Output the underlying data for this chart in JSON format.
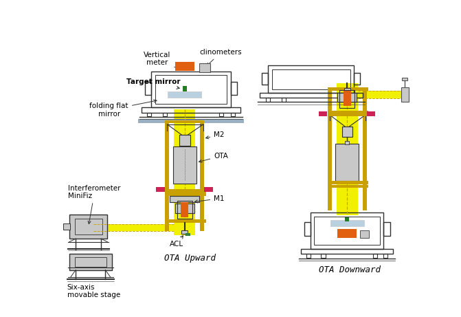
{
  "bg_color": "#ffffff",
  "yellow": "#f0f000",
  "gold": "#c8a000",
  "orange": "#e06010",
  "light_gray": "#c8c8c8",
  "dark_gray": "#505050",
  "pink": "#cc2255",
  "green": "#208020",
  "light_blue": "#b8d0e0",
  "dashed_color": "#c8a800",
  "line_color": "#303030",
  "labels": {
    "vertical_meter": "Vertical\nmeter",
    "clinometers": "clinometers",
    "target_mirror": "Target mirror",
    "folding_flat_mirror": "folding flat\nmirror",
    "M2": "M2",
    "OTA": "OTA",
    "M1": "M1",
    "ACL": "ACL",
    "OTA_upward": "OTA Upward",
    "interferometer": "Interferometer\nMiniFiz",
    "six_axis": "Six-axis\nmovable stage",
    "OTA_downward": "OTA Downward"
  }
}
